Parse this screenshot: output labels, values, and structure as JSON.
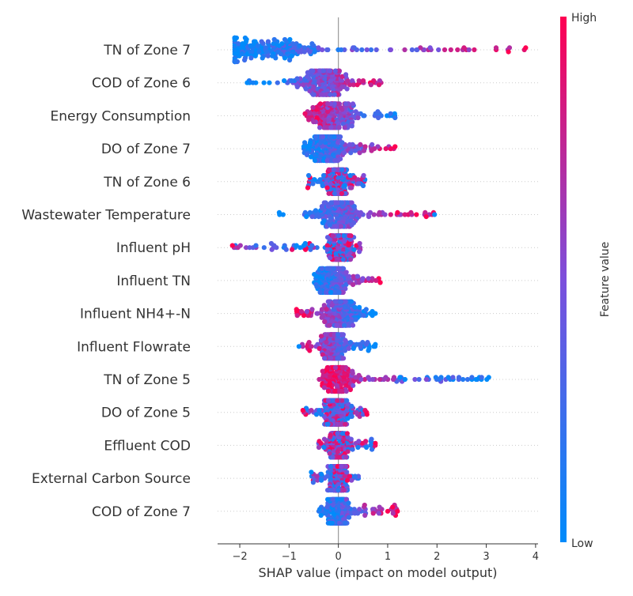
{
  "chart_data": {
    "type": "scatter",
    "subtype": "shap-beeswarm",
    "title": "",
    "xlabel": "SHAP value (impact on model output)",
    "ylabel": "",
    "xlim": [
      -2.45,
      4.05
    ],
    "xticks": [
      -2,
      -1,
      0,
      1,
      2,
      3,
      4
    ],
    "xtick_labels": [
      "−2",
      "−1",
      "0",
      "1",
      "2",
      "3",
      "4"
    ],
    "colorbar": {
      "title": "Feature value",
      "high_label": "High",
      "low_label": "Low",
      "low_color": "#008bfb",
      "mid_color": "#7c4fdc",
      "high_color": "#ff0052"
    },
    "features": [
      {
        "name": "TN of Zone 7",
        "min": -2.1,
        "max": 3.8,
        "center": -1.6,
        "spread": 1.3,
        "trend": 1,
        "outliers": [
          [
            3.8,
            1
          ],
          [
            3.45,
            1
          ],
          [
            -2.1,
            0
          ]
        ]
      },
      {
        "name": "COD of Zone 6",
        "min": -1.85,
        "max": 0.9,
        "center": -0.3,
        "spread": 0.55,
        "trend": 1,
        "outliers": [
          [
            -1.85,
            0
          ],
          [
            -1.4,
            0
          ],
          [
            -1.1,
            0
          ]
        ]
      },
      {
        "name": "Energy Consumption",
        "min": -0.7,
        "max": 1.15,
        "center": -0.1,
        "spread": 0.5,
        "trend": -1,
        "outliers": [
          [
            1.15,
            0.2
          ]
        ]
      },
      {
        "name": "DO of Zone 7",
        "min": -0.7,
        "max": 1.15,
        "center": -0.2,
        "spread": 0.45,
        "trend": 1,
        "outliers": [
          [
            1.15,
            1
          ],
          [
            -0.7,
            0
          ]
        ]
      },
      {
        "name": "TN of Zone 6",
        "min": -0.62,
        "max": 0.55,
        "center": 0.0,
        "spread": 0.3,
        "trend": 0,
        "outliers": [
          [
            -0.62,
            1
          ]
        ]
      },
      {
        "name": "Wastewater Temperature",
        "min": -1.2,
        "max": 1.95,
        "center": 0.0,
        "spread": 0.45,
        "trend": 1,
        "outliers": [
          [
            -1.2,
            0
          ],
          [
            1.95,
            0
          ],
          [
            1.2,
            1
          ],
          [
            -0.65,
            0
          ]
        ]
      },
      {
        "name": "Influent pH",
        "min": -2.15,
        "max": 0.45,
        "center": 0.05,
        "spread": 0.3,
        "trend": 0,
        "outliers": [
          [
            -2.15,
            1
          ],
          [
            -0.85,
            0
          ],
          [
            -0.7,
            0
          ]
        ]
      },
      {
        "name": "Influent TN",
        "min": -0.5,
        "max": 0.85,
        "center": -0.1,
        "spread": 0.35,
        "trend": 1,
        "outliers": [
          [
            0.85,
            1
          ]
        ]
      },
      {
        "name": "Influent NH4+-N",
        "min": -0.85,
        "max": 0.75,
        "center": 0.05,
        "spread": 0.35,
        "trend": -1,
        "outliers": [
          [
            -0.85,
            1
          ],
          [
            -0.7,
            1
          ],
          [
            0.75,
            0
          ]
        ]
      },
      {
        "name": "Influent Flowrate",
        "min": -0.8,
        "max": 0.75,
        "center": -0.1,
        "spread": 0.3,
        "trend": -1,
        "outliers": [
          [
            -0.8,
            0
          ],
          [
            0.75,
            0
          ]
        ]
      },
      {
        "name": "TN of Zone 5",
        "min": -0.4,
        "max": 3.05,
        "center": 0.0,
        "spread": 0.3,
        "trend": -1,
        "outliers": [
          [
            3.05,
            0
          ],
          [
            1.35,
            0
          ],
          [
            1.25,
            0
          ]
        ]
      },
      {
        "name": "DO of Zone 5",
        "min": -0.72,
        "max": 0.58,
        "center": -0.05,
        "spread": 0.3,
        "trend": 0,
        "outliers": [
          [
            -0.72,
            1
          ],
          [
            0.58,
            1
          ]
        ]
      },
      {
        "name": "Effluent COD",
        "min": -0.45,
        "max": 0.75,
        "center": 0.0,
        "spread": 0.25,
        "trend": 0,
        "outliers": [
          [
            0.75,
            1
          ]
        ]
      },
      {
        "name": "External Carbon Source",
        "min": -0.55,
        "max": 0.42,
        "center": 0.0,
        "spread": 0.2,
        "trend": 0,
        "outliers": [
          [
            -0.55,
            0
          ]
        ]
      },
      {
        "name": "COD of Zone 7",
        "min": -0.42,
        "max": 1.2,
        "center": 0.0,
        "spread": 0.25,
        "trend": 1,
        "outliers": [
          [
            1.2,
            1
          ],
          [
            1.1,
            1
          ],
          [
            1.0,
            1
          ]
        ]
      }
    ]
  }
}
